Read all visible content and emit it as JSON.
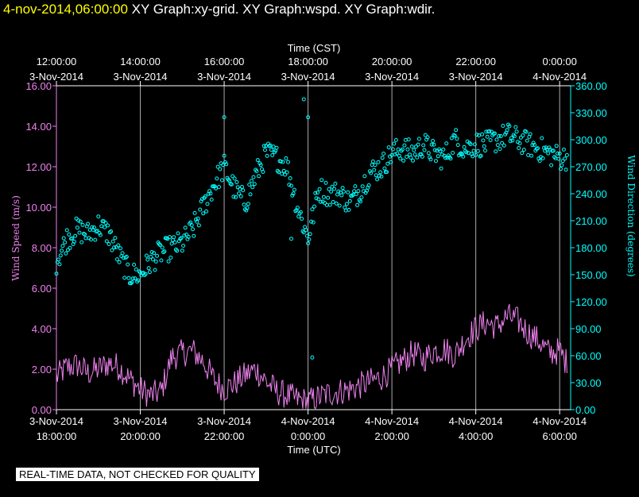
{
  "header": {
    "date_label": "4-nov-2014,06:00:00",
    "titles": [
      "XY Graph:xy-grid.",
      "XY Graph:wspd.",
      "XY Graph:wdir."
    ]
  },
  "notice": "REAL-TIME DATA, NOT CHECKED FOR QUALITY",
  "colors": {
    "background": "#000000",
    "grid": "#aaaaaa",
    "axis_left": "#ee82ee",
    "axis_right": "#00ffff",
    "axis_text": "#ffffff",
    "header_date": "#ffff00"
  },
  "chart_data": {
    "type": "line+scatter",
    "x_unit": "hours since 3-Nov-2014 18:00 UTC",
    "xlim": [
      0,
      12.3
    ],
    "top_axis": {
      "title": "Time (CST)",
      "ticks": [
        {
          "x": 0,
          "time": "12:00:00",
          "date": "3-Nov-2014"
        },
        {
          "x": 2,
          "time": "14:00:00",
          "date": "3-Nov-2014"
        },
        {
          "x": 4,
          "time": "16:00:00",
          "date": "3-Nov-2014"
        },
        {
          "x": 6,
          "time": "18:00:00",
          "date": "3-Nov-2014"
        },
        {
          "x": 8,
          "time": "20:00:00",
          "date": "3-Nov-2014"
        },
        {
          "x": 10,
          "time": "22:00:00",
          "date": "3-Nov-2014"
        },
        {
          "x": 12,
          "time": "0:00:00",
          "date": "4-Nov-2014"
        }
      ]
    },
    "bottom_axis": {
      "title": "Time (UTC)",
      "ticks": [
        {
          "x": 0,
          "date": "3-Nov-2014",
          "time": "18:00:00"
        },
        {
          "x": 2,
          "date": "3-Nov-2014",
          "time": "20:00:00"
        },
        {
          "x": 4,
          "date": "3-Nov-2014",
          "time": "22:00:00"
        },
        {
          "x": 6,
          "date": "4-Nov-2014",
          "time": "0:00:00"
        },
        {
          "x": 8,
          "date": "4-Nov-2014",
          "time": "2:00:00"
        },
        {
          "x": 10,
          "date": "4-Nov-2014",
          "time": "4:00:00"
        },
        {
          "x": 12,
          "date": "4-Nov-2014",
          "time": "6:00:00"
        }
      ]
    },
    "left_axis": {
      "title": "Wind Speed (m/s)",
      "ylim": [
        0,
        16
      ],
      "ticks": [
        "0.00",
        "2.00",
        "4.00",
        "6.00",
        "8.00",
        "10.00",
        "12.00",
        "14.00",
        "16.00"
      ]
    },
    "right_axis": {
      "title": "Wind Direction (degrees)",
      "ylim": [
        0,
        360
      ],
      "ticks": [
        "0.00",
        "30.00",
        "60.00",
        "90.00",
        "120.00",
        "150.00",
        "180.00",
        "210.00",
        "240.00",
        "270.00",
        "300.00",
        "330.00",
        "360.00"
      ]
    },
    "series": [
      {
        "name": "wspd",
        "type": "line",
        "axis": "left",
        "color": "#ee82ee",
        "x": [
          0,
          0.25,
          0.5,
          0.75,
          1,
          1.25,
          1.5,
          1.75,
          2,
          2.25,
          2.5,
          2.75,
          3,
          3.25,
          3.5,
          3.75,
          4,
          4.25,
          4.5,
          4.75,
          5,
          5.25,
          5.5,
          5.75,
          6,
          6.25,
          6.5,
          6.75,
          7,
          7.25,
          7.5,
          7.75,
          8,
          8.25,
          8.5,
          8.75,
          9,
          9.25,
          9.5,
          9.75,
          10,
          10.25,
          10.5,
          10.75,
          11,
          11.25,
          11.5,
          11.75,
          12,
          12.2
        ],
        "values": [
          1.6,
          2.1,
          2.2,
          1.8,
          2.0,
          2.3,
          2.1,
          1.5,
          1.0,
          0.7,
          0.9,
          2.6,
          2.8,
          2.9,
          2.4,
          1.5,
          1.0,
          1.3,
          1.7,
          2.0,
          1.4,
          0.9,
          0.7,
          0.5,
          0.4,
          0.6,
          0.8,
          0.9,
          1.0,
          1.2,
          1.4,
          1.6,
          2.0,
          2.4,
          2.8,
          2.5,
          2.9,
          3.0,
          2.7,
          3.5,
          4.0,
          4.3,
          4.1,
          4.6,
          4.4,
          3.8,
          3.4,
          2.8,
          2.9,
          2.2
        ],
        "noise": 0.7
      },
      {
        "name": "wdir",
        "type": "scatter",
        "axis": "right",
        "color": "#00ffff",
        "x": [
          0,
          0.25,
          0.5,
          0.75,
          1,
          1.25,
          1.5,
          1.75,
          2,
          2.25,
          2.5,
          2.75,
          3,
          3.25,
          3.5,
          3.75,
          4,
          4.25,
          4.5,
          4.75,
          5,
          5.25,
          5.5,
          5.75,
          6,
          6.25,
          6.5,
          6.75,
          7,
          7.25,
          7.5,
          7.75,
          8,
          8.25,
          8.5,
          8.75,
          9,
          9.25,
          9.5,
          9.75,
          10,
          10.25,
          10.5,
          10.75,
          11,
          11.25,
          11.5,
          11.75,
          12,
          12.2
        ],
        "values": [
          165,
          190,
          200,
          195,
          205,
          195,
          170,
          150,
          150,
          165,
          175,
          180,
          185,
          200,
          225,
          250,
          270,
          245,
          230,
          260,
          285,
          280,
          270,
          225,
          190,
          245,
          240,
          240,
          230,
          245,
          265,
          270,
          285,
          290,
          285,
          295,
          285,
          280,
          300,
          290,
          295,
          295,
          300,
          305,
          300,
          295,
          290,
          285,
          280,
          280
        ],
        "noise": 14,
        "outliers": [
          {
            "x": 4.0,
            "y": 325
          },
          {
            "x": 5.9,
            "y": 345
          },
          {
            "x": 6.0,
            "y": 325
          },
          {
            "x": 5.6,
            "y": 190
          },
          {
            "x": 6.1,
            "y": 58
          }
        ]
      }
    ]
  }
}
